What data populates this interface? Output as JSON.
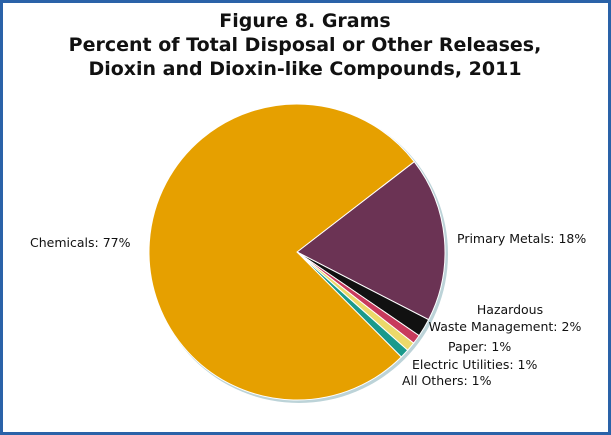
{
  "chart_data": {
    "type": "pie",
    "title": [
      "Figure 8. Grams",
      "Percent of Total Disposal or Other Releases,",
      "Dioxin and Dioxin-like Compounds, 2011"
    ],
    "values": [
      18,
      2,
      1,
      1,
      1,
      77
    ],
    "value_labels": [
      "Primary Metals: 18%",
      [
        "Hazardous",
        "Waste Management: 2%"
      ],
      "Paper: 1%",
      "Electric Utilities: 1%",
      "All Others: 1%",
      "Chemicals: 77%"
    ],
    "colors": [
      "#6b3354",
      "#111111",
      "#c83a5c",
      "#ecd96a",
      "#1a9a8c",
      "#e6a000"
    ]
  }
}
